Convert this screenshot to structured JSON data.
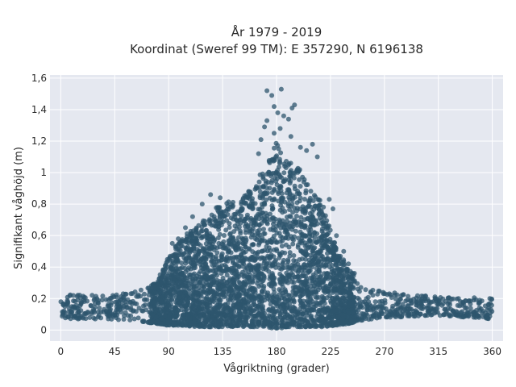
{
  "chart_data": {
    "type": "scatter",
    "title_line1": "År 1979 - 2019",
    "title_line2": "Koordinat (Sweref 99 TM): E 357290, N 6196138",
    "xlabel": "Vågriktning (grader)",
    "ylabel": "Signifikant våghöjd (m)",
    "xlim": [
      -9,
      369
    ],
    "ylim": [
      -0.07,
      1.62
    ],
    "xticks": [
      0,
      45,
      90,
      135,
      180,
      225,
      270,
      315,
      360
    ],
    "xtick_labels": [
      "0",
      "45",
      "90",
      "135",
      "180",
      "225",
      "270",
      "315",
      "360"
    ],
    "yticks": [
      0,
      0.2,
      0.4,
      0.6,
      0.8,
      1.0,
      1.2,
      1.4,
      1.6
    ],
    "ytick_labels": [
      "0",
      "0,2",
      "0,4",
      "0,6",
      "0,8",
      "1",
      "1,2",
      "1,4",
      "1,6"
    ],
    "grid": true,
    "legend": "none",
    "colors": {
      "marker": "#2e566e",
      "background": "#e5e8f0",
      "grid": "#ffffff"
    },
    "series": [
      {
        "envelope_direction": [
          0,
          20,
          40,
          60,
          80,
          90,
          100,
          110,
          120,
          130,
          140,
          150,
          160,
          170,
          175,
          180,
          185,
          190,
          200,
          210,
          220,
          230,
          240,
          250,
          260,
          270,
          280,
          300,
          320,
          340,
          360
        ],
        "envelope_max_height": [
          0.22,
          0.23,
          0.22,
          0.24,
          0.3,
          0.48,
          0.58,
          0.64,
          0.7,
          0.78,
          0.82,
          0.84,
          0.9,
          1.05,
          1.12,
          1.2,
          1.14,
          1.08,
          1.02,
          0.9,
          0.78,
          0.52,
          0.4,
          0.3,
          0.26,
          0.25,
          0.24,
          0.22,
          0.21,
          0.21,
          0.2
        ],
        "envelope_min_height": [
          0.07,
          0.07,
          0.07,
          0.06,
          0.04,
          0.03,
          0.03,
          0.02,
          0.02,
          0.02,
          0.02,
          0.02,
          0.02,
          0.02,
          0.01,
          0.01,
          0.01,
          0.02,
          0.02,
          0.02,
          0.02,
          0.03,
          0.04,
          0.06,
          0.07,
          0.08,
          0.08,
          0.09,
          0.09,
          0.08,
          0.07
        ],
        "outliers": [
          [
            172,
            1.52
          ],
          [
            176,
            1.49
          ],
          [
            184,
            1.53
          ],
          [
            178,
            1.42
          ],
          [
            195,
            1.43
          ],
          [
            193,
            1.41
          ],
          [
            172,
            1.33
          ],
          [
            181,
            1.38
          ],
          [
            186,
            1.36
          ],
          [
            190,
            1.34
          ],
          [
            170,
            1.29
          ],
          [
            178,
            1.25
          ],
          [
            183,
            1.28
          ],
          [
            167,
            1.21
          ],
          [
            192,
            1.23
          ],
          [
            200,
            1.16
          ],
          [
            205,
            1.14
          ],
          [
            210,
            1.18
          ],
          [
            165,
            1.12
          ],
          [
            214,
            1.1
          ],
          [
            125,
            0.86
          ],
          [
            133,
            0.84
          ],
          [
            118,
            0.8
          ],
          [
            110,
            0.72
          ],
          [
            104,
            0.65
          ],
          [
            98,
            0.58
          ],
          [
            93,
            0.55
          ],
          [
            224,
            0.83
          ],
          [
            227,
            0.77
          ],
          [
            230,
            0.6
          ],
          [
            236,
            0.5
          ],
          [
            240,
            0.42
          ],
          [
            245,
            0.36
          ]
        ]
      }
    ]
  }
}
